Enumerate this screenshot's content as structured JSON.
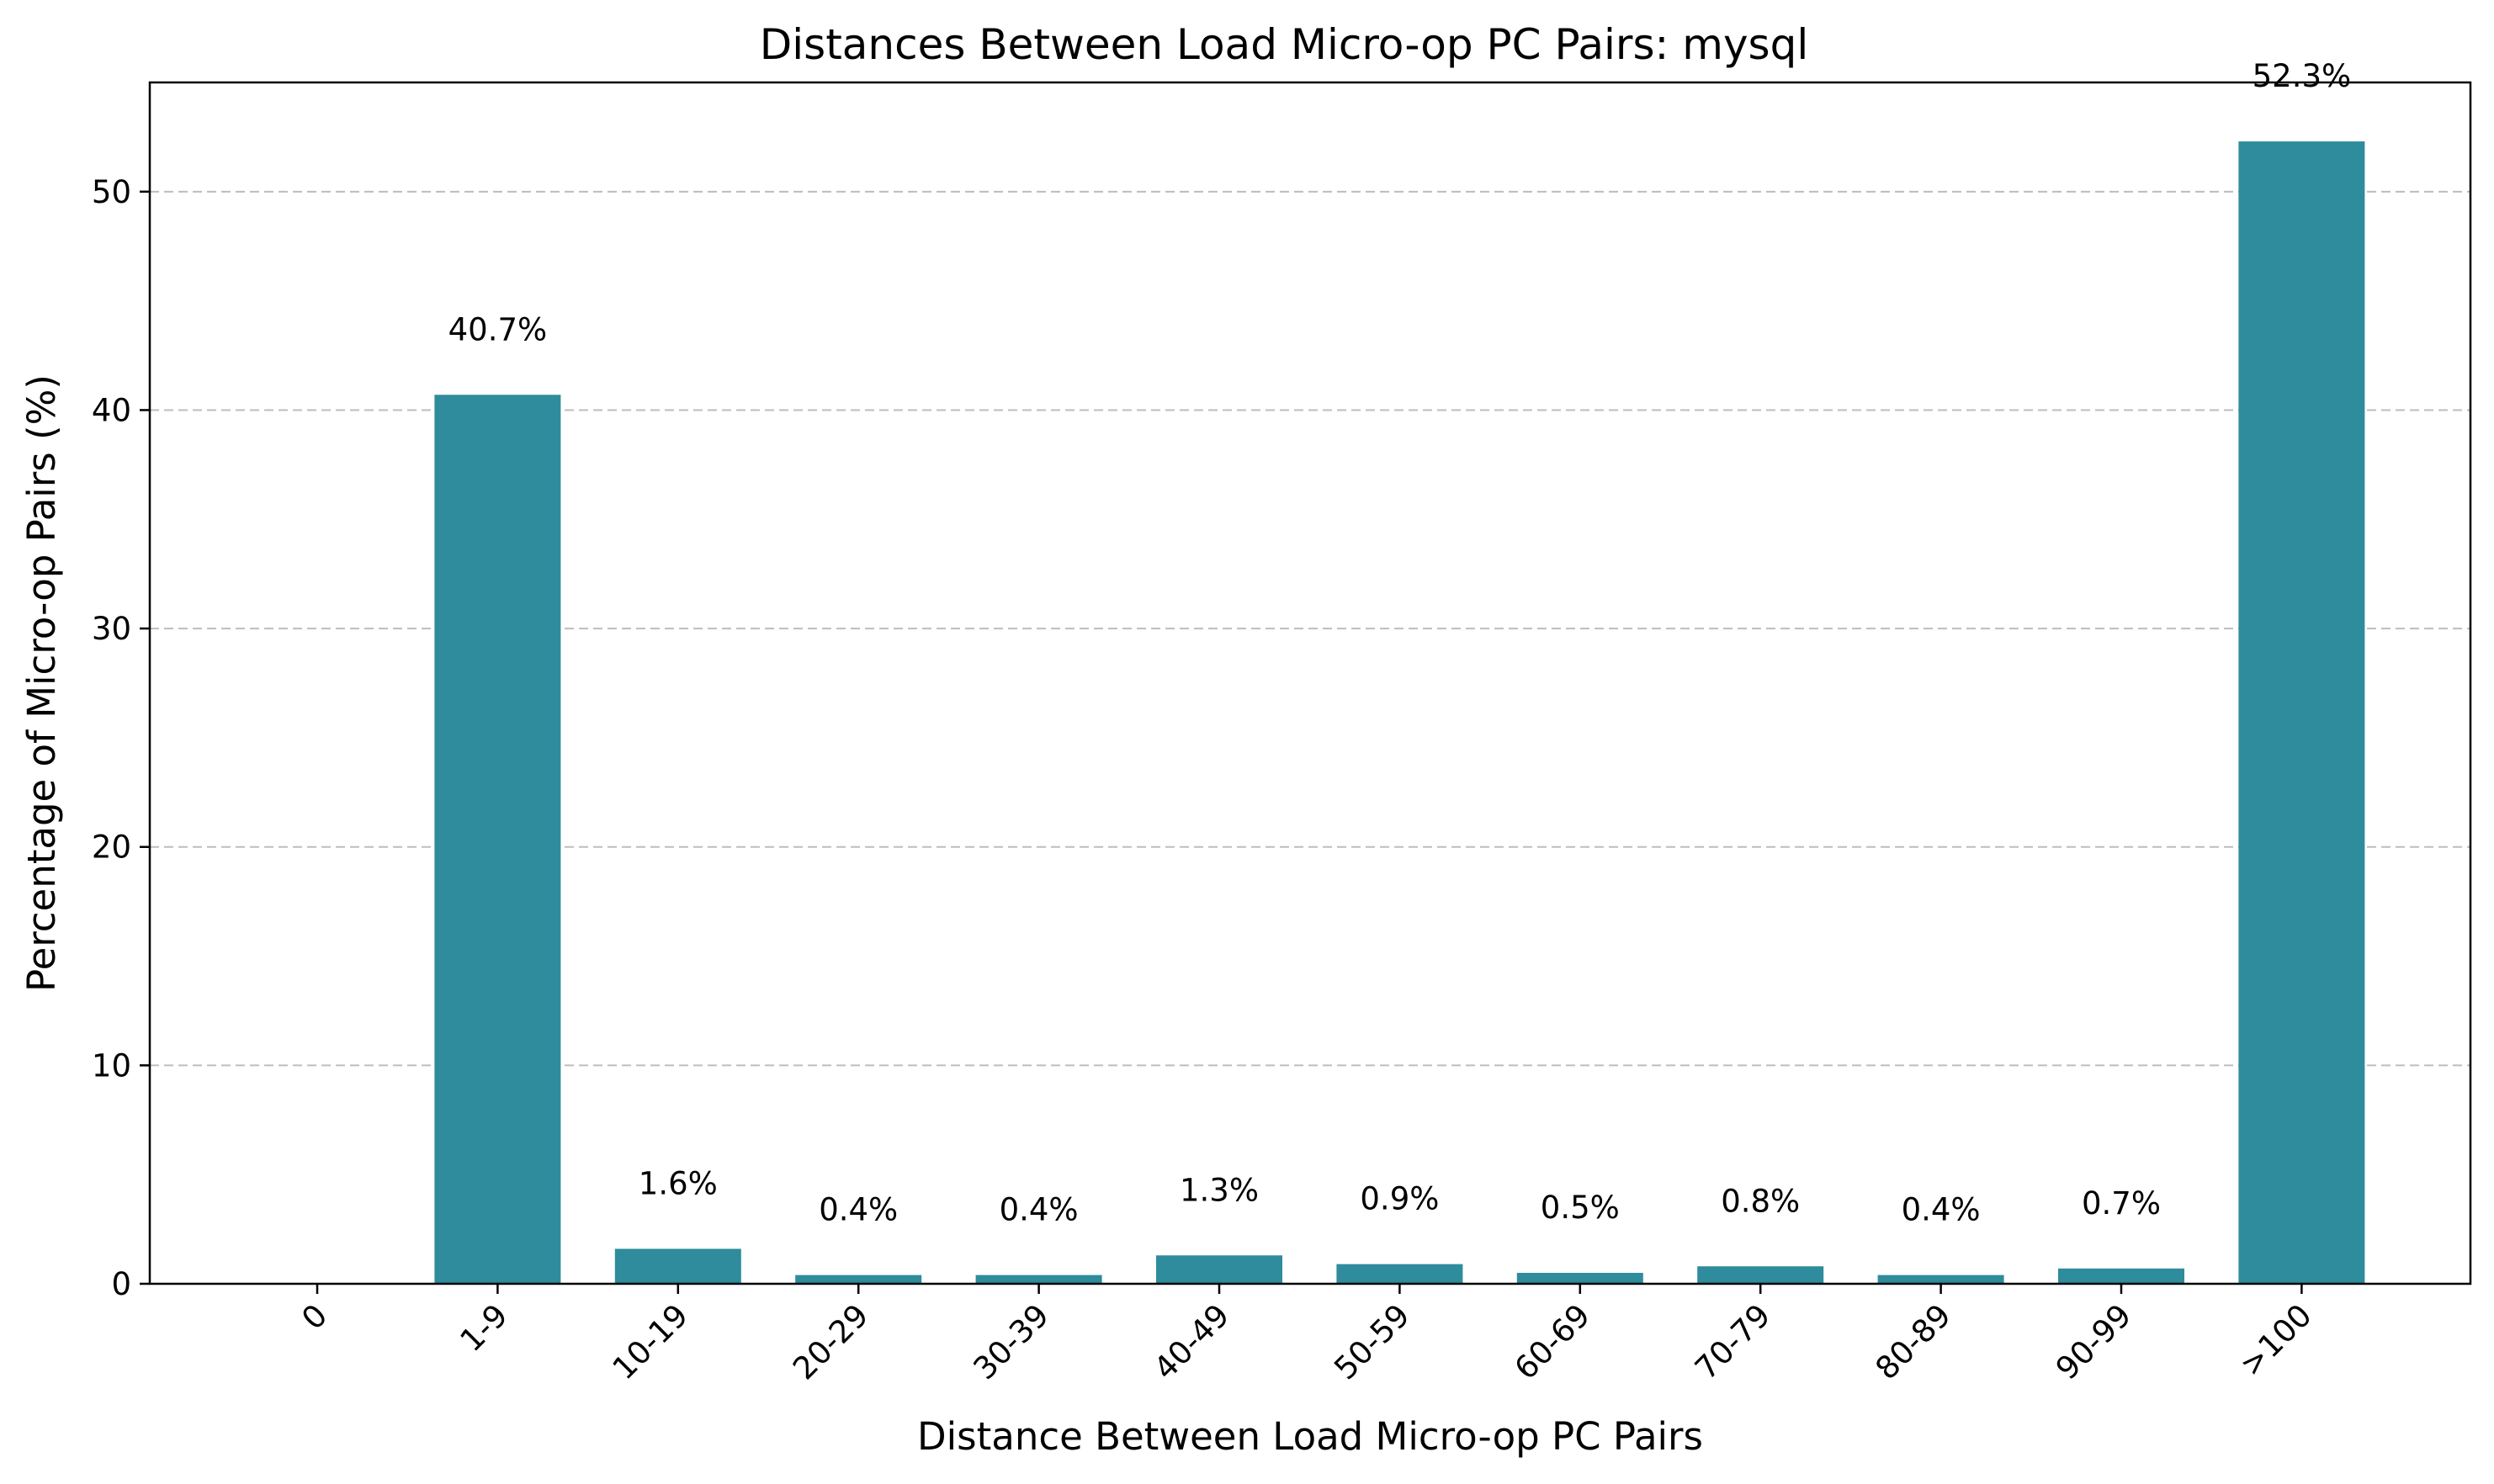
{
  "chart_data": {
    "type": "bar",
    "title": "Distances Between Load Micro-op PC Pairs: mysql",
    "xlabel": "Distance Between Load Micro-op PC Pairs",
    "ylabel": "Percentage of Micro-op Pairs (%)",
    "categories": [
      "0",
      "1-9",
      "10-19",
      "20-29",
      "30-39",
      "40-49",
      "50-59",
      "60-69",
      "70-79",
      "80-89",
      "90-99",
      ">100"
    ],
    "values": [
      0,
      40.7,
      1.6,
      0.4,
      0.4,
      1.3,
      0.9,
      0.5,
      0.8,
      0.4,
      0.7,
      52.3
    ],
    "data_labels": [
      "",
      "40.7%",
      "1.6%",
      "0.4%",
      "0.4%",
      "1.3%",
      "0.9%",
      "0.5%",
      "0.8%",
      "0.4%",
      "0.7%",
      "52.3%"
    ],
    "ylim": [
      0,
      55
    ],
    "yticks": [
      0,
      10,
      20,
      30,
      40,
      50
    ],
    "grid": "y-dashed",
    "bar_color": "#2e8c9c",
    "grid_color": "#bdbdbd"
  }
}
